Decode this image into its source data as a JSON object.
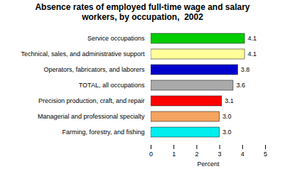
{
  "chart_data": {
    "type": "bar",
    "orientation": "horizontal",
    "title": "Absence rates of employed full-time wage and salary\nworkers, by occupation,  2002",
    "categories": [
      "Farming, forestry, and fishing",
      "Managerial and professional specialty",
      "Precision production, craft, and repair",
      "TOTAL, all occupations",
      "Operators, fabricators, and laborers",
      "Technical, sales, and administrative support",
      "Service occupations"
    ],
    "values": [
      3.0,
      3.0,
      3.1,
      3.6,
      3.8,
      4.1,
      4.1
    ],
    "value_labels": [
      "3.0",
      "3.0",
      "3.1",
      "3.6",
      "3.8",
      "4.1",
      "4.1"
    ],
    "data_labels": true,
    "colors": [
      "#00EEEE",
      "#F4A460",
      "#FF0000",
      "#AAAAAA",
      "#0000CD",
      "#FFFF99",
      "#00CC00"
    ],
    "xlabel": "Percent",
    "xlim": [
      0,
      5
    ],
    "xticks": [
      0,
      1,
      2,
      3,
      4,
      5
    ],
    "grid": false
  }
}
